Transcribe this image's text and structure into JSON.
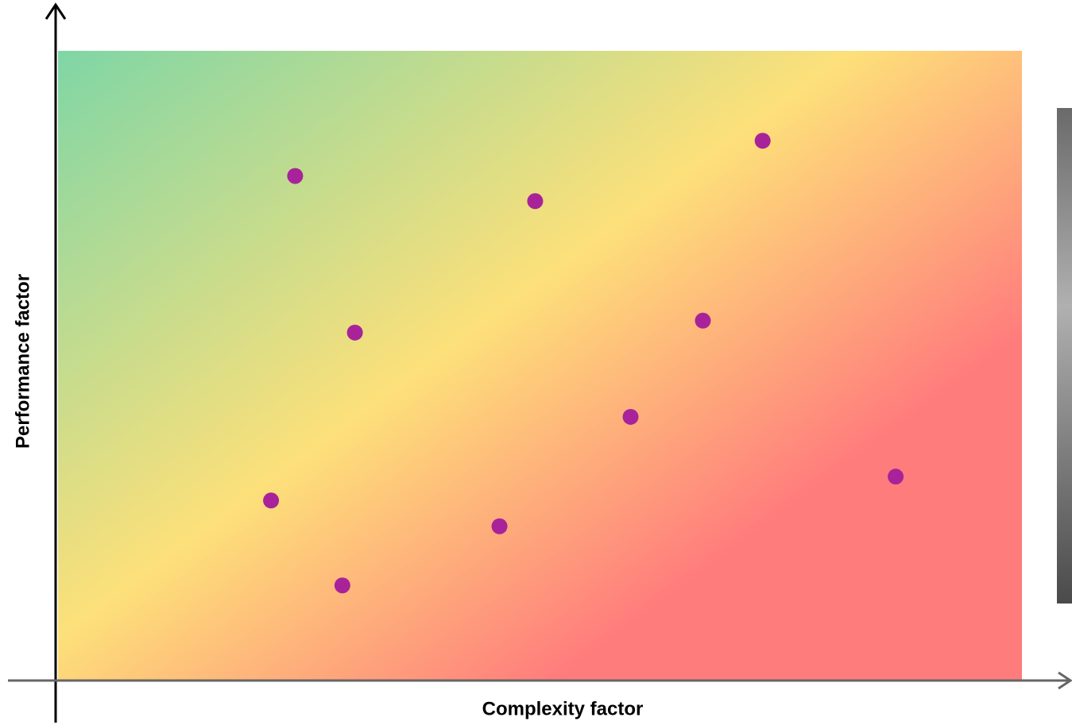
{
  "chart_data": {
    "type": "scatter",
    "xlabel": "Complexity factor",
    "ylabel": "Performance factor",
    "xlim": [
      0,
      100
    ],
    "ylim": [
      0,
      100
    ],
    "color": "#a8239a",
    "x": [
      24.6,
      49.5,
      73.1,
      30.8,
      66.9,
      59.4,
      86.9,
      22.1,
      45.8,
      29.5
    ],
    "values": [
      80.1,
      76.1,
      85.7,
      55.2,
      57.1,
      41.8,
      32.3,
      28.5,
      24.4,
      15.0
    ]
  }
}
